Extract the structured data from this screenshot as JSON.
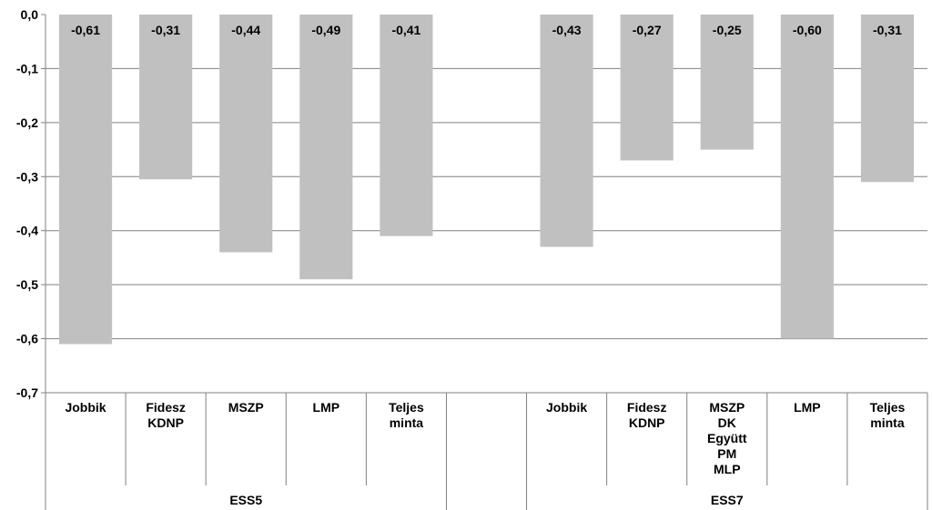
{
  "chart_data": {
    "type": "bar",
    "title": "",
    "xlabel": "",
    "ylabel": "",
    "ylim": [
      -0.7,
      0.0
    ],
    "yticks": [
      "0,0",
      "-0,1",
      "-0,2",
      "-0,3",
      "-0,4",
      "-0,5",
      "-0,6",
      "-0,7"
    ],
    "grid": true,
    "bar_color": "#c0c0c0",
    "grid_color": "#808080",
    "groups": [
      {
        "label": "ESS5",
        "categories": [
          {
            "label": [
              "Jobbik"
            ],
            "value": -0.61,
            "value_label": "-0,61"
          },
          {
            "label": [
              "Fidesz",
              "KDNP"
            ],
            "value": -0.305,
            "value_label": "-0,31"
          },
          {
            "label": [
              "MSZP"
            ],
            "value": -0.44,
            "value_label": "-0,44"
          },
          {
            "label": [
              "LMP"
            ],
            "value": -0.49,
            "value_label": "-0,49"
          },
          {
            "label": [
              "Teljes",
              "minta"
            ],
            "value": -0.41,
            "value_label": "-0,41"
          }
        ]
      },
      {
        "label": "ESS7",
        "categories": [
          {
            "label": [
              "Jobbik"
            ],
            "value": -0.43,
            "value_label": "-0,43"
          },
          {
            "label": [
              "Fidesz",
              "KDNP"
            ],
            "value": -0.27,
            "value_label": "-0,27"
          },
          {
            "label": [
              "MSZP",
              "DK",
              "Együtt",
              "PM",
              "MLP"
            ],
            "value": -0.25,
            "value_label": "-0,25"
          },
          {
            "label": [
              "LMP"
            ],
            "value": -0.6,
            "value_label": "-0,60"
          },
          {
            "label": [
              "Teljes",
              "minta"
            ],
            "value": -0.31,
            "value_label": "-0,31"
          }
        ]
      }
    ]
  }
}
